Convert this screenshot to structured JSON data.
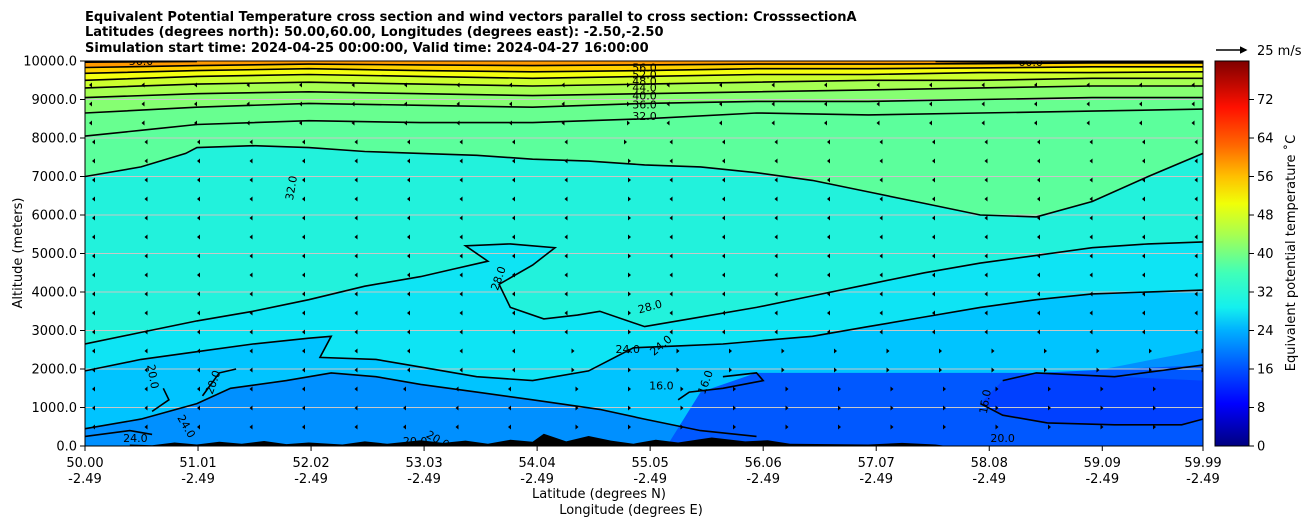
{
  "chart_data": {
    "type": "contour",
    "title_lines": [
      "Equivalent Potential Temperature cross section and wind vectors parallel to cross section: CrosssectionA",
      "Latitudes (degrees north): 50.00,60.00, Longitudes (degrees east): -2.50,-2.50",
      "Simulation start time: 2024-04-25 00:00:00, Valid time: 2024-04-27 16:00:00"
    ],
    "xlabel": "Latitude (degrees N)",
    "xlabel2": "Longitude (degrees E)",
    "ylabel": "Altitude (meters)",
    "colorbar_label": "Equivalent potential temperature ˚C",
    "wind_key_label": "25 m/s",
    "xlim": [
      50.0,
      59.99
    ],
    "ylim": [
      0,
      10000
    ],
    "x_ticks": [
      {
        "lat": "50.00",
        "lon": "-2.49",
        "value": 50.0
      },
      {
        "lat": "51.01",
        "lon": "-2.49",
        "value": 51.01
      },
      {
        "lat": "52.02",
        "lon": "-2.49",
        "value": 52.02
      },
      {
        "lat": "53.03",
        "lon": "-2.49",
        "value": 53.03
      },
      {
        "lat": "54.04",
        "lon": "-2.49",
        "value": 54.04
      },
      {
        "lat": "55.05",
        "lon": "-2.49",
        "value": 55.05
      },
      {
        "lat": "56.06",
        "lon": "-2.49",
        "value": 56.06
      },
      {
        "lat": "57.07",
        "lon": "-2.49",
        "value": 57.07
      },
      {
        "lat": "58.08",
        "lon": "-2.49",
        "value": 58.08
      },
      {
        "lat": "59.09",
        "lon": "-2.49",
        "value": 59.09
      },
      {
        "lat": "59.99",
        "lon": "-2.49",
        "value": 59.99
      }
    ],
    "y_ticks": [
      {
        "label": "0.0",
        "value": 0
      },
      {
        "label": "1000.0",
        "value": 1000
      },
      {
        "label": "2000.0",
        "value": 2000
      },
      {
        "label": "3000.0",
        "value": 3000
      },
      {
        "label": "4000.0",
        "value": 4000
      },
      {
        "label": "5000.0",
        "value": 5000
      },
      {
        "label": "6000.0",
        "value": 6000
      },
      {
        "label": "7000.0",
        "value": 7000
      },
      {
        "label": "8000.0",
        "value": 8000
      },
      {
        "label": "9000.0",
        "value": 9000
      },
      {
        "label": "10000.0",
        "value": 10000
      }
    ],
    "colorbar_range": [
      0,
      80
    ],
    "colorbar_ticks": [
      "0",
      "8",
      "16",
      "24",
      "32",
      "40",
      "48",
      "56",
      "64",
      "72"
    ],
    "grid": "horizontal",
    "contours": [
      {
        "level": 16,
        "label": "16.0",
        "segments": [
          [
            [
              55.7,
              1800
            ],
            [
              56.0,
              1900
            ],
            [
              56.06,
              1700
            ],
            [
              55.7,
              1500
            ],
            [
              55.4,
              1400
            ],
            [
              55.3,
              1200
            ]
          ],
          [
            [
              58.2,
              1700
            ],
            [
              58.5,
              1900
            ],
            [
              59.2,
              1800
            ],
            [
              59.99,
              2100
            ]
          ],
          [
            [
              58.0,
              1100
            ],
            [
              58.2,
              800
            ],
            [
              58.6,
              600
            ],
            [
              59.2,
              550
            ],
            [
              59.8,
              550
            ],
            [
              59.99,
              700
            ]
          ]
        ]
      },
      {
        "level": 20,
        "label": "20.0",
        "segments": [
          [
            [
              50.0,
              450
            ],
            [
              50.5,
              700
            ],
            [
              51.0,
              1100
            ],
            [
              51.3,
              1500
            ],
            [
              51.8,
              1700
            ],
            [
              52.2,
              1900
            ],
            [
              52.6,
              1800
            ],
            [
              53.0,
              1600
            ],
            [
              53.5,
              1400
            ],
            [
              54.0,
              1200
            ],
            [
              54.6,
              950
            ],
            [
              55.0,
              700
            ],
            [
              55.5,
              400
            ],
            [
              56.0,
              250
            ]
          ],
          [
            [
              50.6,
              900
            ],
            [
              50.75,
              1200
            ],
            [
              50.7,
              1500
            ]
          ],
          [
            [
              51.05,
              1300
            ],
            [
              51.2,
              1900
            ],
            [
              51.35,
              2000
            ]
          ]
        ]
      },
      {
        "level": 24,
        "label": "24.0",
        "segments": [
          [
            [
              50.0,
              1950
            ],
            [
              50.5,
              2250
            ],
            [
              51.0,
              2450
            ],
            [
              51.5,
              2650
            ],
            [
              52.0,
              2800
            ],
            [
              52.2,
              2850
            ],
            [
              52.1,
              2300
            ],
            [
              52.6,
              2250
            ],
            [
              53.0,
              2050
            ],
            [
              53.5,
              1800
            ],
            [
              54.0,
              1700
            ],
            [
              54.5,
              1950
            ],
            [
              54.9,
              2550
            ],
            [
              55.3,
              2600
            ],
            [
              55.7,
              2650
            ],
            [
              56.1,
              2750
            ],
            [
              56.5,
              2850
            ],
            [
              57.0,
              3100
            ],
            [
              57.5,
              3350
            ],
            [
              58.0,
              3600
            ],
            [
              58.5,
              3800
            ],
            [
              59.0,
              3950
            ],
            [
              59.99,
              4050
            ]
          ],
          [
            [
              50.0,
              250
            ],
            [
              50.4,
              400
            ],
            [
              50.6,
              300
            ]
          ]
        ]
      },
      {
        "level": 28,
        "label": "28.0",
        "segments": [
          [
            [
              50.0,
              2650
            ],
            [
              50.5,
              2950
            ],
            [
              51.0,
              3250
            ],
            [
              51.5,
              3500
            ],
            [
              52.0,
              3800
            ],
            [
              52.5,
              4150
            ],
            [
              53.0,
              4400
            ],
            [
              53.3,
              4600
            ],
            [
              53.6,
              4800
            ],
            [
              53.4,
              5200
            ],
            [
              53.8,
              5250
            ],
            [
              54.2,
              5150
            ],
            [
              54.0,
              4700
            ],
            [
              53.7,
              4200
            ],
            [
              53.8,
              3600
            ],
            [
              54.1,
              3300
            ],
            [
              54.4,
              3400
            ],
            [
              54.6,
              3500
            ],
            [
              55.0,
              3100
            ],
            [
              55.4,
              3300
            ],
            [
              56.0,
              3600
            ],
            [
              56.5,
              3900
            ],
            [
              57.0,
              4200
            ],
            [
              57.5,
              4500
            ],
            [
              58.0,
              4750
            ],
            [
              58.5,
              4950
            ],
            [
              59.0,
              5150
            ],
            [
              59.5,
              5250
            ],
            [
              59.99,
              5300
            ]
          ]
        ]
      },
      {
        "level": 32,
        "label": "32.0",
        "segments": [
          [
            [
              50.0,
              7000
            ],
            [
              50.5,
              7250
            ],
            [
              50.9,
              7600
            ],
            [
              51.0,
              7750
            ],
            [
              51.5,
              7800
            ],
            [
              52.0,
              7750
            ],
            [
              52.5,
              7650
            ],
            [
              53.0,
              7600
            ],
            [
              53.5,
              7550
            ],
            [
              54.0,
              7450
            ],
            [
              54.5,
              7400
            ],
            [
              55.0,
              7300
            ],
            [
              55.5,
              7250
            ],
            [
              56.0,
              7100
            ],
            [
              56.5,
              6900
            ],
            [
              57.0,
              6600
            ],
            [
              57.5,
              6300
            ],
            [
              58.0,
              6000
            ],
            [
              58.5,
              5950
            ],
            [
              59.0,
              6350
            ],
            [
              59.5,
              7000
            ],
            [
              59.99,
              7600
            ]
          ],
          [
            [
              50.0,
              8050
            ],
            [
              50.5,
              8200
            ],
            [
              51.0,
              8350
            ],
            [
              52.0,
              8450
            ],
            [
              53.0,
              8400
            ],
            [
              54.0,
              8400
            ],
            [
              55.0,
              8500
            ],
            [
              56.0,
              8650
            ],
            [
              57.0,
              8600
            ],
            [
              58.0,
              8650
            ],
            [
              59.0,
              8700
            ],
            [
              59.99,
              8750
            ]
          ]
        ]
      },
      {
        "level": 36,
        "label": "36.0",
        "segments": [
          [
            [
              50.0,
              8650
            ],
            [
              51.0,
              8800
            ],
            [
              52.0,
              8900
            ],
            [
              53.0,
              8850
            ],
            [
              54.0,
              8800
            ],
            [
              55.0,
              8900
            ],
            [
              56.0,
              8950
            ],
            [
              57.0,
              8950
            ],
            [
              58.0,
              9000
            ],
            [
              59.0,
              9050
            ],
            [
              59.99,
              9050
            ]
          ]
        ]
      },
      {
        "level": 40,
        "label": "40.0",
        "segments": [
          [
            [
              50.0,
              9050
            ],
            [
              51.0,
              9150
            ],
            [
              52.0,
              9200
            ],
            [
              53.0,
              9150
            ],
            [
              54.0,
              9100
            ],
            [
              55.0,
              9150
            ],
            [
              56.0,
              9200
            ],
            [
              57.0,
              9250
            ],
            [
              58.0,
              9300
            ],
            [
              59.0,
              9350
            ],
            [
              59.99,
              9350
            ]
          ]
        ]
      },
      {
        "level": 44,
        "label": "44.0",
        "segments": [
          [
            [
              50.0,
              9300
            ],
            [
              51.0,
              9400
            ],
            [
              52.0,
              9450
            ],
            [
              53.0,
              9400
            ],
            [
              54.0,
              9350
            ],
            [
              55.0,
              9400
            ],
            [
              56.0,
              9450
            ],
            [
              57.0,
              9500
            ],
            [
              58.0,
              9500
            ],
            [
              59.0,
              9550
            ],
            [
              59.99,
              9550
            ]
          ]
        ]
      },
      {
        "level": 48,
        "label": "48.0",
        "segments": [
          [
            [
              50.0,
              9500
            ],
            [
              51.0,
              9600
            ],
            [
              52.0,
              9650
            ],
            [
              53.0,
              9600
            ],
            [
              54.0,
              9550
            ],
            [
              55.0,
              9600
            ],
            [
              56.0,
              9650
            ],
            [
              57.0,
              9650
            ],
            [
              58.0,
              9700
            ],
            [
              59.0,
              9700
            ],
            [
              59.99,
              9720
            ]
          ]
        ]
      },
      {
        "level": 52,
        "label": "52.0",
        "segments": [
          [
            [
              50.0,
              9680
            ],
            [
              51.0,
              9750
            ],
            [
              52.0,
              9800
            ],
            [
              53.0,
              9750
            ],
            [
              54.0,
              9720
            ],
            [
              55.0,
              9750
            ],
            [
              56.0,
              9800
            ],
            [
              57.0,
              9800
            ],
            [
              58.0,
              9820
            ],
            [
              59.0,
              9850
            ],
            [
              59.99,
              9850
            ]
          ]
        ]
      },
      {
        "level": 56,
        "label": "56.0",
        "segments": [
          [
            [
              50.0,
              9830
            ],
            [
              51.0,
              9880
            ],
            [
              52.0,
              9920
            ],
            [
              53.0,
              9900
            ],
            [
              54.0,
              9880
            ],
            [
              55.0,
              9900
            ],
            [
              56.0,
              9920
            ],
            [
              57.0,
              9920
            ],
            [
              58.0,
              9930
            ],
            [
              59.0,
              9950
            ],
            [
              59.99,
              9950
            ]
          ]
        ]
      },
      {
        "level": 60,
        "label": "60.0",
        "segments": [
          [
            [
              50.0,
              9970
            ],
            [
              51.0,
              9990
            ]
          ],
          [
            [
              57.6,
              9990
            ],
            [
              58.5,
              9960
            ],
            [
              59.99,
              9980
            ]
          ]
        ]
      }
    ],
    "contour_labels": [
      {
        "text": "56.0",
        "x": 55.0,
        "y": 9800,
        "rot": 0
      },
      {
        "text": "52.0",
        "x": 55.0,
        "y": 9620,
        "rot": 0
      },
      {
        "text": "48.0",
        "x": 55.0,
        "y": 9450,
        "rot": 0
      },
      {
        "text": "44.0",
        "x": 55.0,
        "y": 9280,
        "rot": 0
      },
      {
        "text": "40.0",
        "x": 55.0,
        "y": 9080,
        "rot": 0
      },
      {
        "text": "36.0",
        "x": 55.0,
        "y": 8850,
        "rot": 0
      },
      {
        "text": "32.0",
        "x": 55.0,
        "y": 8550,
        "rot": 0
      },
      {
        "text": "60.0",
        "x": 58.45,
        "y": 9950,
        "rot": 0
      },
      {
        "text": "56.0",
        "x": 50.5,
        "y": 9970,
        "rot": 0
      },
      {
        "text": "32.0",
        "x": 51.85,
        "y": 6700,
        "rot": -80
      },
      {
        "text": "28.0",
        "x": 53.7,
        "y": 4350,
        "rot": -70
      },
      {
        "text": "28.0",
        "x": 55.05,
        "y": 3600,
        "rot": -15
      },
      {
        "text": "24.0",
        "x": 54.85,
        "y": 2500,
        "rot": 0
      },
      {
        "text": "24.0",
        "x": 55.15,
        "y": 2600,
        "rot": -40
      },
      {
        "text": "20.0",
        "x": 50.6,
        "y": 1800,
        "rot": 80
      },
      {
        "text": "20.0",
        "x": 51.15,
        "y": 1650,
        "rot": -70
      },
      {
        "text": "24.0",
        "x": 50.9,
        "y": 500,
        "rot": 60
      },
      {
        "text": "24.0",
        "x": 50.45,
        "y": 180,
        "rot": 0
      },
      {
        "text": "20.0",
        "x": 52.95,
        "y": 100,
        "rot": 0
      },
      {
        "text": "20.0",
        "x": 53.15,
        "y": 150,
        "rot": 30
      },
      {
        "text": "16.0",
        "x": 55.15,
        "y": 1550,
        "rot": 0
      },
      {
        "text": "16.0",
        "x": 55.55,
        "y": 1650,
        "rot": -70
      },
      {
        "text": "16.0",
        "x": 58.05,
        "y": 1150,
        "rot": -80
      },
      {
        "text": "20.0",
        "x": 58.2,
        "y": 180,
        "rot": 0
      }
    ]
  }
}
